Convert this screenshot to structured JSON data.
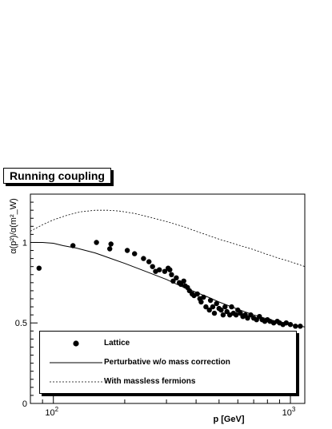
{
  "chart_data": {
    "type": "scatter",
    "title": "Running coupling",
    "xlabel": "p [GeV]",
    "ylabel": "α(p²)/α(m²_W)",
    "x_scale": "log",
    "xlim": [
      80,
      1150
    ],
    "ylim": [
      0,
      1.3
    ],
    "x_ticks": [
      {
        "value": 100,
        "label": "10",
        "exp": "2"
      },
      {
        "value": 1000,
        "label": "10",
        "exp": "3"
      }
    ],
    "y_ticks": [
      {
        "value": 0,
        "label": "0"
      },
      {
        "value": 0.5,
        "label": "0.5"
      },
      {
        "value": 1,
        "label": "1"
      }
    ],
    "legend_position": "bottom-left",
    "series": [
      {
        "name": "Lattice",
        "kind": "points",
        "points": [
          [
            87,
            0.84
          ],
          [
            121,
            0.98
          ],
          [
            152,
            1.0
          ],
          [
            173,
            0.96
          ],
          [
            175,
            0.99
          ],
          [
            205,
            0.95
          ],
          [
            220,
            0.93
          ],
          [
            240,
            0.9
          ],
          [
            253,
            0.88
          ],
          [
            262,
            0.85
          ],
          [
            270,
            0.82
          ],
          [
            280,
            0.83
          ],
          [
            295,
            0.82
          ],
          [
            305,
            0.84
          ],
          [
            310,
            0.83
          ],
          [
            315,
            0.8
          ],
          [
            320,
            0.76
          ],
          [
            330,
            0.78
          ],
          [
            340,
            0.75
          ],
          [
            345,
            0.74
          ],
          [
            355,
            0.76
          ],
          [
            360,
            0.73
          ],
          [
            368,
            0.72
          ],
          [
            375,
            0.7
          ],
          [
            385,
            0.68
          ],
          [
            392,
            0.67
          ],
          [
            405,
            0.68
          ],
          [
            415,
            0.65
          ],
          [
            420,
            0.63
          ],
          [
            430,
            0.66
          ],
          [
            440,
            0.6
          ],
          [
            455,
            0.58
          ],
          [
            460,
            0.64
          ],
          [
            470,
            0.6
          ],
          [
            478,
            0.56
          ],
          [
            488,
            0.62
          ],
          [
            500,
            0.59
          ],
          [
            510,
            0.58
          ],
          [
            520,
            0.55
          ],
          [
            530,
            0.6
          ],
          [
            540,
            0.57
          ],
          [
            555,
            0.55
          ],
          [
            565,
            0.6
          ],
          [
            575,
            0.56
          ],
          [
            590,
            0.55
          ],
          [
            600,
            0.58
          ],
          [
            615,
            0.56
          ],
          [
            630,
            0.54
          ],
          [
            645,
            0.55
          ],
          [
            660,
            0.53
          ],
          [
            680,
            0.55
          ],
          [
            700,
            0.53
          ],
          [
            720,
            0.52
          ],
          [
            740,
            0.54
          ],
          [
            760,
            0.52
          ],
          [
            780,
            0.51
          ],
          [
            800,
            0.52
          ],
          [
            820,
            0.51
          ],
          [
            850,
            0.5
          ],
          [
            880,
            0.51
          ],
          [
            900,
            0.5
          ],
          [
            930,
            0.49
          ],
          [
            960,
            0.5
          ],
          [
            1000,
            0.49
          ],
          [
            1050,
            0.48
          ],
          [
            1100,
            0.48
          ]
        ]
      },
      {
        "name": "Perturbative w/o mass correction",
        "kind": "line",
        "dash": "solid",
        "points": [
          [
            80,
            1.0
          ],
          [
            90,
            1.0
          ],
          [
            100,
            0.995
          ],
          [
            110,
            0.98
          ],
          [
            125,
            0.965
          ],
          [
            150,
            0.935
          ],
          [
            175,
            0.9
          ],
          [
            200,
            0.87
          ],
          [
            250,
            0.815
          ],
          [
            300,
            0.77
          ],
          [
            350,
            0.725
          ],
          [
            400,
            0.69
          ],
          [
            450,
            0.66
          ],
          [
            500,
            0.63
          ],
          [
            600,
            0.585
          ],
          [
            700,
            0.55
          ],
          [
            800,
            0.525
          ],
          [
            900,
            0.505
          ],
          [
            1000,
            0.49
          ],
          [
            1100,
            0.48
          ],
          [
            1150,
            0.475
          ]
        ]
      },
      {
        "name": "With massless fermions",
        "kind": "line",
        "dash": "dashed",
        "points": [
          [
            80,
            1.07
          ],
          [
            90,
            1.11
          ],
          [
            100,
            1.14
          ],
          [
            115,
            1.17
          ],
          [
            130,
            1.19
          ],
          [
            150,
            1.2
          ],
          [
            170,
            1.2
          ],
          [
            190,
            1.195
          ],
          [
            220,
            1.18
          ],
          [
            250,
            1.16
          ],
          [
            300,
            1.13
          ],
          [
            350,
            1.1
          ],
          [
            400,
            1.07
          ],
          [
            500,
            1.02
          ],
          [
            600,
            0.985
          ],
          [
            700,
            0.955
          ],
          [
            800,
            0.925
          ],
          [
            900,
            0.9
          ],
          [
            1000,
            0.88
          ],
          [
            1100,
            0.86
          ],
          [
            1150,
            0.85
          ]
        ]
      }
    ]
  },
  "icons": {
    "lattice_marker": "filled-circle-icon",
    "perturbative_marker": "solid-line-icon",
    "massless_marker": "dashed-line-icon"
  }
}
